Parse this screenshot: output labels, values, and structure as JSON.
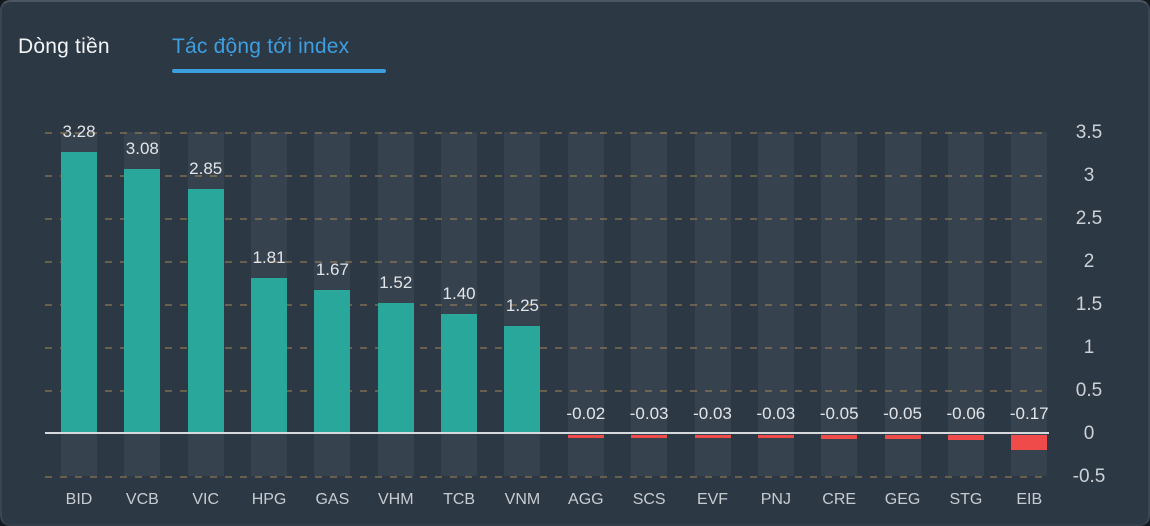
{
  "tabs": {
    "items": [
      {
        "label": "Dòng tiền",
        "active": false
      },
      {
        "label": "Tác động tới index",
        "active": true
      }
    ]
  },
  "chart_data": {
    "type": "bar",
    "title": "Tác động tới index",
    "categories": [
      "BID",
      "VCB",
      "VIC",
      "HPG",
      "GAS",
      "VHM",
      "TCB",
      "VNM",
      "AGG",
      "SCS",
      "EVF",
      "PNJ",
      "CRE",
      "GEG",
      "STG",
      "EIB"
    ],
    "values": [
      3.28,
      3.08,
      2.85,
      1.81,
      1.67,
      1.52,
      1.4,
      1.25,
      -0.02,
      -0.03,
      -0.03,
      -0.03,
      -0.05,
      -0.05,
      -0.06,
      -0.17
    ],
    "value_labels": [
      "3.28",
      "3.08",
      "2.85",
      "1.81",
      "1.67",
      "1.52",
      "1.40",
      "1.25",
      "-0.02",
      "-0.03",
      "-0.03",
      "-0.03",
      "-0.05",
      "-0.05",
      "-0.06",
      "-0.17"
    ],
    "xlabel": "",
    "ylabel": "",
    "ylim": [
      -0.5,
      3.5
    ],
    "y_ticks": [
      3.5,
      3,
      2.5,
      2,
      1.5,
      1,
      0.5,
      0,
      -0.5
    ],
    "y_tick_labels": [
      "3.5",
      "3",
      "2.5",
      "2",
      "1.5",
      "1",
      "0.5",
      "0",
      "-0.5"
    ],
    "axis_position": "right",
    "grid": "dashed-horizontal",
    "legend": "none",
    "bar_background_bands": true,
    "colors": {
      "positive_bar": "#2aa79b",
      "negative_bar": "#ef4b4b",
      "band": "#37424f",
      "grid_dash": "#ba9558",
      "zero_line": "#d6dadd",
      "card_background": "#2d3845",
      "tab_active": "#3d9fe0",
      "tab_inactive_text": "#f2f4f6",
      "label_text": "#e2e5e8"
    }
  }
}
